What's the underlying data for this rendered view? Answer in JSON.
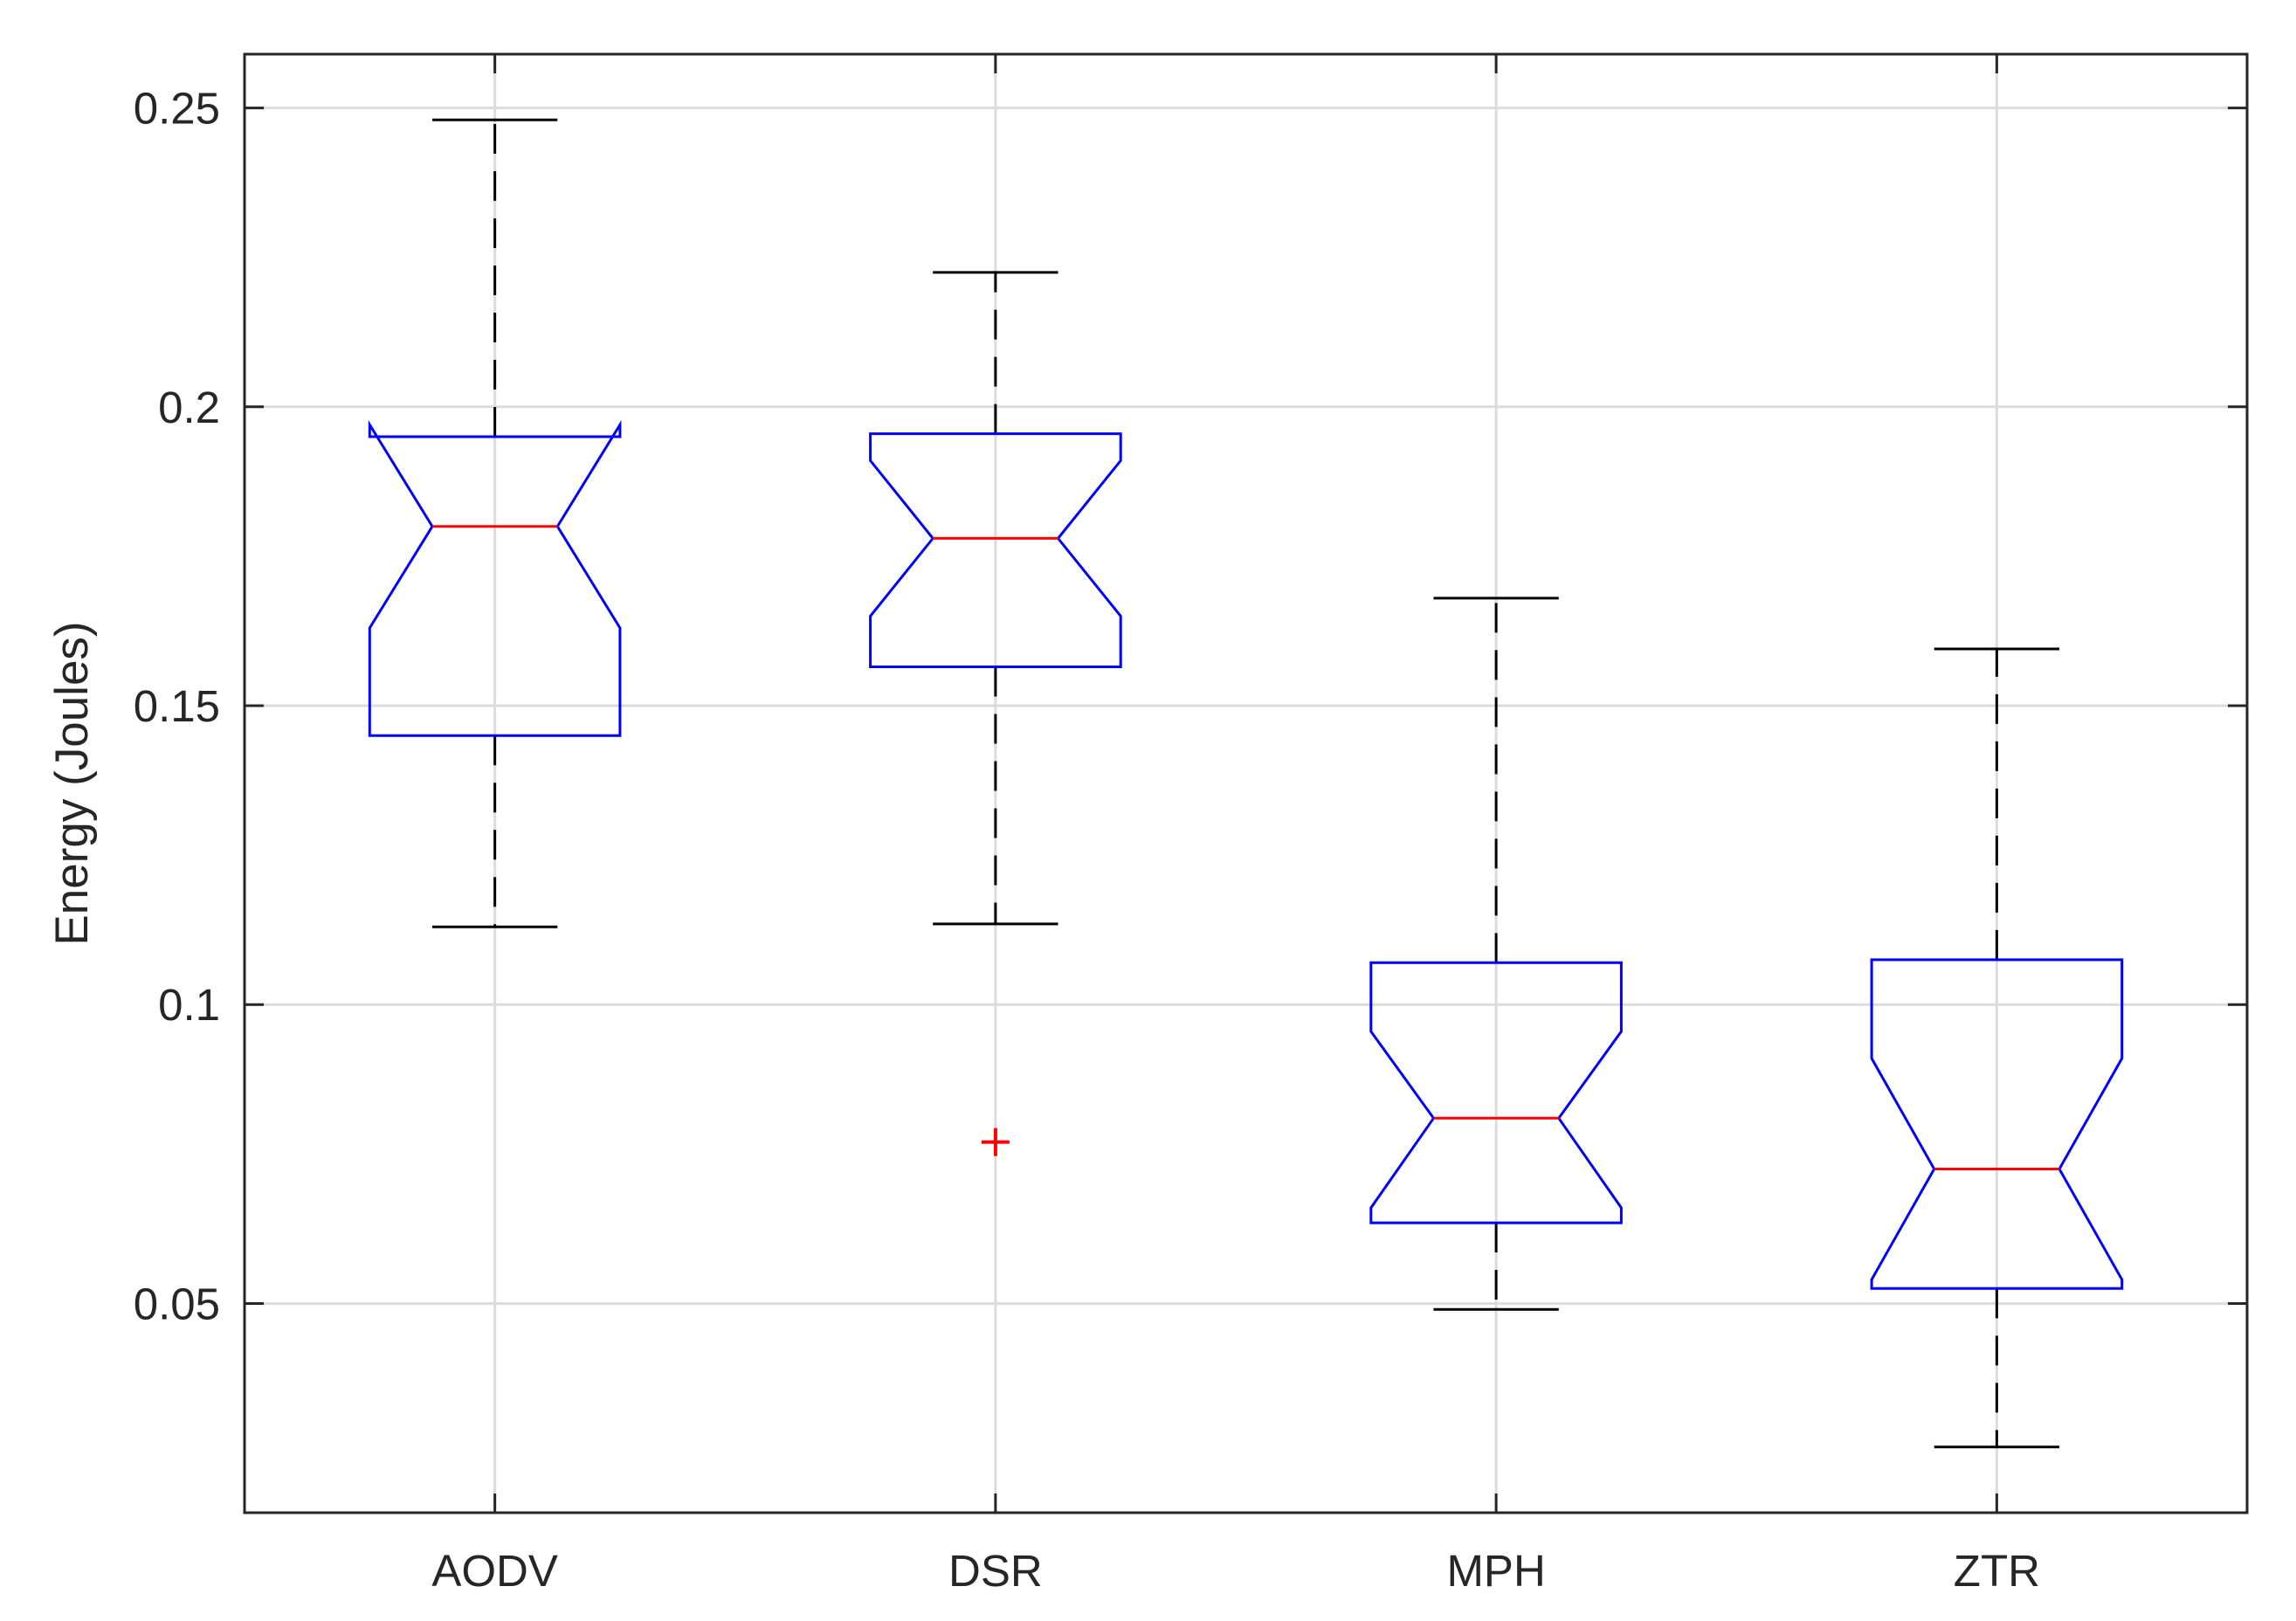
{
  "chart_data": {
    "type": "boxplot",
    "notched": true,
    "title": "",
    "xlabel": "",
    "ylabel": "Energy (Joules)",
    "ylim": [
      0.015,
      0.259
    ],
    "yticks": [
      0.05,
      0.1,
      0.15,
      0.2,
      0.25
    ],
    "ytick_labels": [
      "0.05",
      "0.1",
      "0.15",
      "0.2",
      "0.25"
    ],
    "grid": true,
    "categories": [
      "AODV",
      "DSR",
      "MPH",
      "ZTR"
    ],
    "boxes": [
      {
        "name": "AODV",
        "whisker_low": 0.113,
        "q1": 0.145,
        "median": 0.18,
        "q3": 0.195,
        "whisker_high": 0.248,
        "notch_low": 0.163,
        "notch_high": 0.197,
        "outliers": []
      },
      {
        "name": "DSR",
        "whisker_low": 0.1135,
        "q1": 0.1565,
        "median": 0.178,
        "q3": 0.1955,
        "whisker_high": 0.2225,
        "notch_low": 0.165,
        "notch_high": 0.191,
        "outliers": [
          0.077
        ]
      },
      {
        "name": "MPH",
        "whisker_low": 0.049,
        "q1": 0.0635,
        "median": 0.081,
        "q3": 0.107,
        "whisker_high": 0.168,
        "notch_low": 0.066,
        "notch_high": 0.0955,
        "outliers": []
      },
      {
        "name": "ZTR",
        "whisker_low": 0.026,
        "q1": 0.0525,
        "median": 0.0725,
        "q3": 0.1075,
        "whisker_high": 0.1595,
        "notch_low": 0.054,
        "notch_high": 0.091,
        "outliers": []
      }
    ],
    "colors": {
      "box": "#0000ff",
      "median": "#ff0000",
      "whisker": "#000000",
      "outlier": "#ff0000",
      "grid": "#dcdcdc",
      "axis": "#262626"
    }
  }
}
